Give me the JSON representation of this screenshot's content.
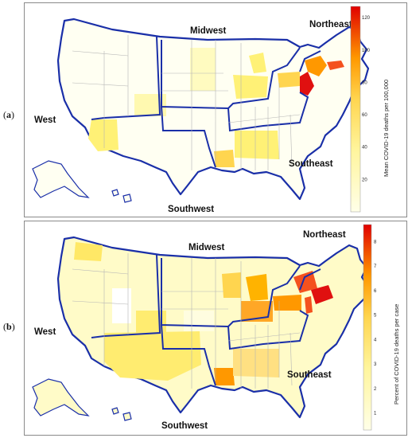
{
  "panels": [
    {
      "label_prefix": "(",
      "label_letter": "a",
      "label_suffix": ")",
      "regions": [
        "Midwest",
        "Northeast",
        "West",
        "Southeast",
        "Southwest"
      ],
      "colorbar": {
        "title": "Mean COVID-19 deaths per 100,000",
        "ticks": [
          "20",
          "40",
          "60",
          "80",
          "100",
          "120"
        ],
        "tick_values": [
          20,
          40,
          60,
          80,
          100,
          120
        ],
        "min": 0,
        "max": 127
      },
      "colors": [
        "#ffffe0",
        "#fff176",
        "#ffd54f",
        "#ff9800",
        "#f4511e",
        "#e01010"
      ]
    },
    {
      "label_prefix": "(",
      "label_letter": "b",
      "label_suffix": ")",
      "regions": [
        "Midwest",
        "Northeast",
        "West",
        "Southeast",
        "Southwest"
      ],
      "colorbar": {
        "title": "Percent of COVID-19 deaths per case",
        "ticks": [
          "1",
          "2",
          "3",
          "4",
          "5",
          "6",
          "7",
          "8"
        ],
        "tick_values": [
          1,
          2,
          3,
          4,
          5,
          6,
          7,
          8
        ],
        "min": 0.3,
        "max": 8.7
      },
      "colors": [
        "#ffffe0",
        "#fff176",
        "#ffd54f",
        "#ff9800",
        "#f4511e",
        "#e01010"
      ]
    }
  ],
  "outline_color": "#1a2fa8"
}
